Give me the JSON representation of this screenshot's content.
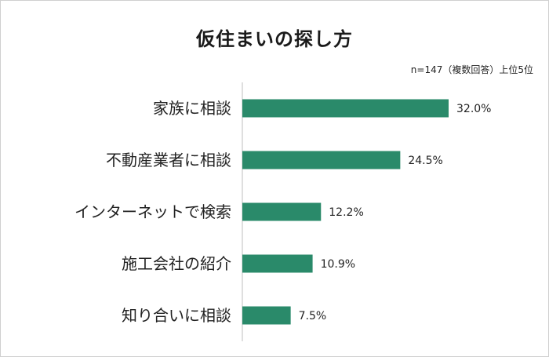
{
  "chart_data": {
    "type": "bar",
    "orientation": "horizontal",
    "title": "仮住まいの探し方",
    "note": "n=147（複数回答）上位5位",
    "categories": [
      "家族に相談",
      "不動産業者に相談",
      "インターネットで検索",
      "施工会社の紹介",
      "知り合いに相談"
    ],
    "values": [
      32.0,
      24.5,
      12.2,
      10.9,
      7.5
    ],
    "value_labels": [
      "32.0%",
      "24.5%",
      "12.2%",
      "10.9%",
      "7.5%"
    ],
    "xlim": [
      0,
      36
    ],
    "grid": false,
    "legend": "none",
    "bar_color": "#2a8a6a"
  }
}
